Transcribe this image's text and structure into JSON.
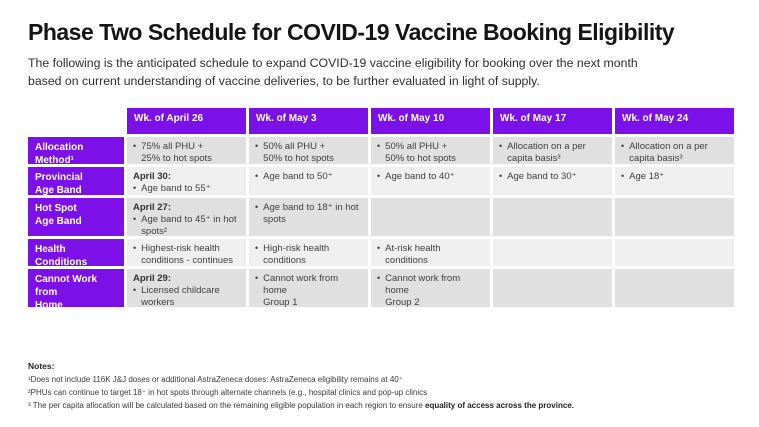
{
  "page": {
    "title": "Phase Two Schedule for COVID-19 Vaccine Booking Eligibility",
    "subtitle": "The following is the anticipated schedule to expand COVID-19 vaccine eligibility for booking over the next month\nbased on current understanding of vaccine deliveries, to be further evaluated in light of supply."
  },
  "colors": {
    "accent_purple": "#7B11E8",
    "cell_dark": "#E0E0E0",
    "cell_light": "#EFEFEF"
  },
  "table": {
    "columns": [
      "Wk. of April 26",
      "Wk. of May 3",
      "Wk. of May 10",
      "Wk. of May 17",
      "Wk. of May 24"
    ],
    "rows": [
      {
        "label": "Allocation\nMethod¹",
        "cells": [
          {
            "date": "",
            "items": [
              "75% all PHU +\n25% to hot spots"
            ]
          },
          {
            "date": "",
            "items": [
              "50% all PHU +\n50% to hot spots"
            ]
          },
          {
            "date": "",
            "items": [
              "50% all PHU +\n50% to hot spots"
            ]
          },
          {
            "date": "",
            "items": [
              "Allocation on a per\ncapita basis³"
            ]
          },
          {
            "date": "",
            "items": [
              "Allocation on a per\ncapita basis³"
            ]
          }
        ]
      },
      {
        "label": "Provincial\nAge Band",
        "cells": [
          {
            "date": "April 30:",
            "items": [
              "Age band to 55⁺"
            ]
          },
          {
            "date": "",
            "items": [
              "Age band to 50⁺"
            ]
          },
          {
            "date": "",
            "items": [
              "Age band to 40⁺"
            ]
          },
          {
            "date": "",
            "items": [
              "Age band to 30⁺"
            ]
          },
          {
            "date": "",
            "items": [
              "Age 18⁺"
            ]
          }
        ]
      },
      {
        "label": "Hot Spot\nAge Band",
        "cells": [
          {
            "date": "April 27:",
            "items": [
              "Age band to 45⁺ in hot\nspots²"
            ]
          },
          {
            "date": "",
            "items": [
              "Age band to 18⁺ in hot\nspots"
            ]
          },
          {
            "date": "",
            "items": []
          },
          {
            "date": "",
            "items": []
          },
          {
            "date": "",
            "items": []
          }
        ]
      },
      {
        "label": "Health Conditions",
        "cells": [
          {
            "date": "",
            "items": [
              "Highest-risk health\nconditions - continues"
            ]
          },
          {
            "date": "",
            "items": [
              "High-risk health\nconditions"
            ]
          },
          {
            "date": "",
            "items": [
              "At-risk health\nconditions"
            ]
          },
          {
            "date": "",
            "items": []
          },
          {
            "date": "",
            "items": []
          }
        ]
      },
      {
        "label": "Cannot Work from\nHome",
        "cells": [
          {
            "date": "April 29:",
            "items": [
              "Licensed childcare\nworkers"
            ]
          },
          {
            "date": "",
            "items": [
              "Cannot work from\nhome\nGroup 1"
            ]
          },
          {
            "date": "",
            "items": [
              "Cannot work from\nhome\nGroup 2"
            ]
          },
          {
            "date": "",
            "items": []
          },
          {
            "date": "",
            "items": []
          }
        ]
      }
    ]
  },
  "notes": {
    "heading": "Notes:",
    "items": [
      {
        "text": "¹Does not include 116K J&J doses or additional AstraZeneca doses: AstraZeneca eligibility remains at 40⁺",
        "bold": ""
      },
      {
        "text": "²PHUs can continue to target 18⁺ in hot spots through alternate channels (e.g., hospital clinics and pop-up clinics",
        "bold": ""
      },
      {
        "text": "³ The per capita allocation will be calculated based on the remaining eligible population in each region to ensure ",
        "bold": "equality of access across the province."
      }
    ]
  }
}
